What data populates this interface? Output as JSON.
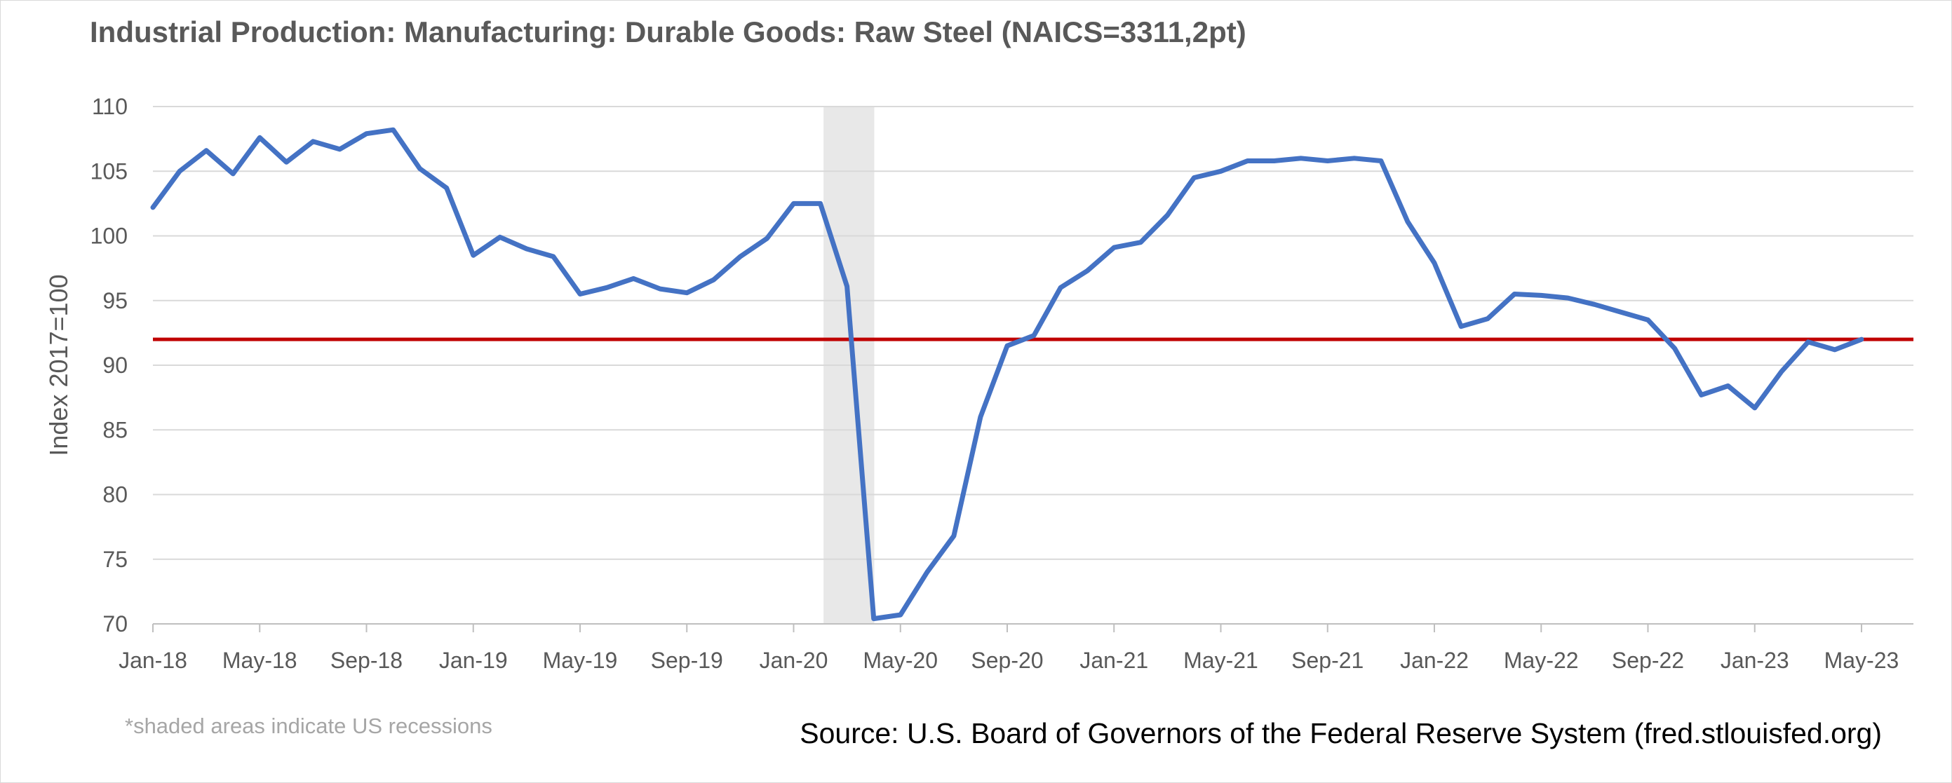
{
  "chart_data": {
    "type": "line",
    "title": "Industrial Production: Manufacturing: Durable Goods: Raw Steel (NAICS=3311,2pt)",
    "xlabel": "",
    "ylabel": "Index 2017=100",
    "ylim": [
      70,
      110
    ],
    "y_ticks": [
      "70",
      "75",
      "80",
      "85",
      "90",
      "95",
      "100",
      "105",
      "110"
    ],
    "x_tick_labels": [
      "Jan-18",
      "May-18",
      "Sep-18",
      "Jan-19",
      "May-19",
      "Sep-19",
      "Jan-20",
      "May-20",
      "Sep-20",
      "Jan-21",
      "May-21",
      "Sep-21",
      "Jan-22",
      "May-22",
      "Sep-22",
      "Jan-23",
      "May-23"
    ],
    "grid": true,
    "recession": {
      "start": "2020-02",
      "end": "2020-04",
      "color": "#e8e8e8"
    },
    "reference_line": {
      "value": 92,
      "color": "#c00000"
    },
    "series": [
      {
        "color": "#4472c4",
        "x": [
          "2018-01",
          "2018-02",
          "2018-03",
          "2018-04",
          "2018-05",
          "2018-06",
          "2018-07",
          "2018-08",
          "2018-09",
          "2018-10",
          "2018-11",
          "2018-12",
          "2019-01",
          "2019-02",
          "2019-03",
          "2019-04",
          "2019-05",
          "2019-06",
          "2019-07",
          "2019-08",
          "2019-09",
          "2019-10",
          "2019-11",
          "2019-12",
          "2020-01",
          "2020-02",
          "2020-03",
          "2020-04",
          "2020-05",
          "2020-06",
          "2020-07",
          "2020-08",
          "2020-09",
          "2020-10",
          "2020-11",
          "2020-12",
          "2021-01",
          "2021-02",
          "2021-03",
          "2021-04",
          "2021-05",
          "2021-06",
          "2021-07",
          "2021-08",
          "2021-09",
          "2021-10",
          "2021-11",
          "2021-12",
          "2022-01",
          "2022-02",
          "2022-03",
          "2022-04",
          "2022-05",
          "2022-06",
          "2022-07",
          "2022-08",
          "2022-09",
          "2022-10",
          "2022-11",
          "2022-12",
          "2023-01",
          "2023-02",
          "2023-03",
          "2023-04",
          "2023-05"
        ],
        "values": [
          102.2,
          105.0,
          106.6,
          104.8,
          107.6,
          105.7,
          107.3,
          106.7,
          107.9,
          108.2,
          105.2,
          103.7,
          98.5,
          99.9,
          99.0,
          98.4,
          95.5,
          96.0,
          96.7,
          95.9,
          95.6,
          96.6,
          98.4,
          99.8,
          102.5,
          102.5,
          96.1,
          70.4,
          70.7,
          74.0,
          76.8,
          86.0,
          91.5,
          92.3,
          96.0,
          97.3,
          99.1,
          99.5,
          101.6,
          104.5,
          105.0,
          105.8,
          105.8,
          106.0,
          105.8,
          106.0,
          105.8,
          101.1,
          97.9,
          93.0,
          93.6,
          95.5,
          95.4,
          95.2,
          94.7,
          94.1,
          93.5,
          91.3,
          87.7,
          88.4,
          86.7,
          89.5,
          91.8,
          91.2,
          92.0
        ]
      }
    ]
  },
  "footer": {
    "note": "*shaded areas indicate US recessions",
    "source": "Source: U.S. Board of Governors of the Federal Reserve System (fred.stlouisfed.org)"
  }
}
